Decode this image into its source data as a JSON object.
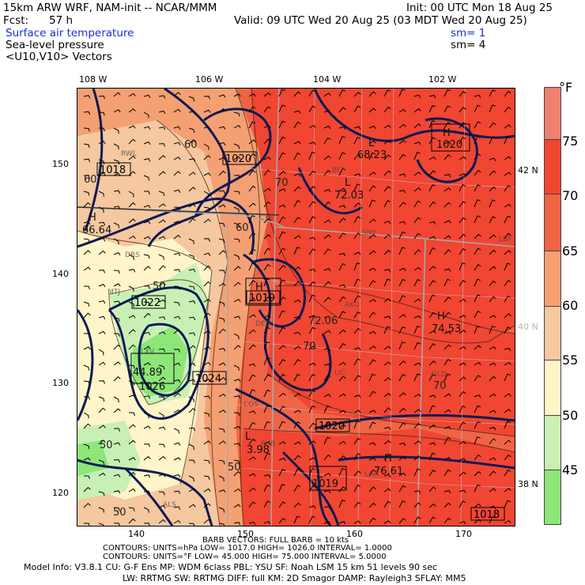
{
  "header": {
    "model_title": "15km ARW WRF, NAM-init -- NCAR/MMM",
    "init_time": "Init: 00 UTC Mon 18 Aug 25",
    "fcst_label": "Fcst:",
    "fcst_hours": "57 h",
    "valid_time": "Valid: 09 UTC Wed 20 Aug 25 (03 MDT Wed 20 Aug 25)",
    "field1": "Surface air temperature",
    "field1_sm": "sm= 1",
    "field2": "Sea-level pressure",
    "field2_sm": "sm= 4",
    "field3": "<U10,V10> Vectors"
  },
  "axes": {
    "top_lon": [
      "108 W",
      "106 W",
      "104 W",
      "102 W"
    ],
    "left_y": [
      "150",
      "140",
      "130",
      "120"
    ],
    "bottom_x": [
      "140",
      "150",
      "160",
      "170"
    ],
    "right_lat": [
      "42 N",
      "40 N",
      "38 N"
    ]
  },
  "colorbar": {
    "unit": "°F",
    "labels": [
      "75",
      "70",
      "65",
      "60",
      "55",
      "50",
      "45"
    ],
    "colors": [
      "#f08070",
      "#f04632",
      "#f06446",
      "#f5a073",
      "#f5c8a0",
      "#fff5c8",
      "#c8f0b4",
      "#8ce678"
    ]
  },
  "map_labels": {
    "highs": [
      {
        "letter": "H",
        "value": "1020"
      },
      {
        "letter": "H",
        "value": "1018"
      },
      {
        "letter": "H",
        "value": "66.64"
      },
      {
        "letter": "H",
        "value": "44.89"
      },
      {
        "letter": "H",
        "value": "74.53"
      },
      {
        "letter": "H",
        "value": "76.61"
      }
    ],
    "lows": [
      {
        "letter": "L",
        "value": "68.23"
      },
      {
        "letter": "L",
        "value": "72.03"
      },
      {
        "letter": "L",
        "value": "1026"
      },
      {
        "letter": "L",
        "value": "1019"
      },
      {
        "letter": "L",
        "value": "3.98"
      }
    ],
    "boxed_isobars": [
      "1018",
      "1020",
      "1022",
      "1019",
      "1024",
      "1020",
      "1018"
    ],
    "temp_contours": [
      "60",
      "60",
      "70",
      "60",
      "50",
      "72.06",
      "70",
      "70",
      "50",
      "50",
      "50"
    ],
    "stations": [
      "RWL",
      "CYS",
      "BFF",
      "SNY",
      "LBF",
      "DEN",
      "AKO",
      "LIC",
      "GLD",
      "COS",
      "PUB",
      "LAA",
      "ALS",
      "DRS",
      "LXV",
      "MTJ"
    ]
  },
  "footer": {
    "barb": "BARB VECTORS:  FULL BARB = 10 kts",
    "contours1": "CONTOURS:  UNITS=hPa  LOW=  1017.0          HIGH=  1026.0          INTERVAL=   1.0000",
    "contours2": "CONTOURS:  UNITS=°F  LOW=  45.000          HIGH=  75.000          INTERVAL=   5.0000",
    "model_info1": "Model Info: V3.8.1    CU: G-F Ens  MP: WDM 6class  PBL: YSU      SF: Noah LSM     15 km   51 levels   90 sec",
    "model_info2": "LW: RRTMG   SW: RRTMG  DIFF: full    KM: 2D Smagor  DAMP: Rayleigh3   SFLAY: MM5"
  }
}
